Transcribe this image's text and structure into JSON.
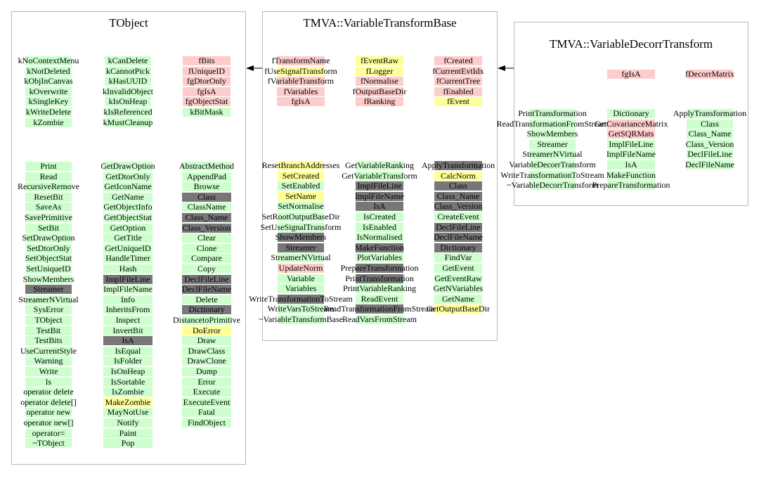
{
  "colors": {
    "public": "#ccffcc",
    "protected": "#ffff99",
    "private": "#ffcccc",
    "inherited": "#777777",
    "border": "#b8b8b8"
  },
  "boxes": [
    {
      "title": "TObject",
      "columns": [
        {
          "section": "members",
          "items": [
            {
              "t": "kNoContextMenu",
              "c": "public"
            },
            {
              "t": "kNotDeleted",
              "c": "public"
            },
            {
              "t": "kObjInCanvas",
              "c": "public"
            },
            {
              "t": "kOverwrite",
              "c": "public"
            },
            {
              "t": "kSingleKey",
              "c": "public"
            },
            {
              "t": "kWriteDelete",
              "c": "public"
            },
            {
              "t": "kZombie",
              "c": "public"
            }
          ]
        },
        {
          "section": "members",
          "items": [
            {
              "t": "kCanDelete",
              "c": "public"
            },
            {
              "t": "kCannotPick",
              "c": "public"
            },
            {
              "t": "kHasUUID",
              "c": "public"
            },
            {
              "t": "kInvalidObject",
              "c": "public"
            },
            {
              "t": "kIsOnHeap",
              "c": "public"
            },
            {
              "t": "kIsReferenced",
              "c": "public"
            },
            {
              "t": "kMustCleanup",
              "c": "public"
            }
          ]
        },
        {
          "section": "members",
          "items": [
            {
              "t": "fBits",
              "c": "private"
            },
            {
              "t": "fUniqueID",
              "c": "private"
            },
            {
              "t": "fgDtorOnly",
              "c": "private"
            },
            {
              "t": "fgIsA",
              "c": "private"
            },
            {
              "t": "fgObjectStat",
              "c": "private"
            },
            {
              "t": "kBitMask",
              "c": "public"
            }
          ]
        },
        {
          "section": "methods",
          "items": [
            {
              "t": "Print",
              "c": "public"
            },
            {
              "t": "Read",
              "c": "public"
            },
            {
              "t": "RecursiveRemove",
              "c": "public"
            },
            {
              "t": "ResetBit",
              "c": "public"
            },
            {
              "t": "SaveAs",
              "c": "public"
            },
            {
              "t": "SavePrimitive",
              "c": "public"
            },
            {
              "t": "SetBit",
              "c": "public"
            },
            {
              "t": "SetDrawOption",
              "c": "public"
            },
            {
              "t": "SetDtorOnly",
              "c": "public"
            },
            {
              "t": "SetObjectStat",
              "c": "public"
            },
            {
              "t": "SetUniqueID",
              "c": "public"
            },
            {
              "t": "ShowMembers",
              "c": "public"
            },
            {
              "t": "Streamer",
              "c": "inherited"
            },
            {
              "t": "StreamerNVirtual",
              "c": "public"
            },
            {
              "t": "SysError",
              "c": "public"
            },
            {
              "t": "TObject",
              "c": "public"
            },
            {
              "t": "TestBit",
              "c": "public"
            },
            {
              "t": "TestBits",
              "c": "public"
            },
            {
              "t": "UseCurrentStyle",
              "c": "public"
            },
            {
              "t": "Warning",
              "c": "public"
            },
            {
              "t": "Write",
              "c": "public"
            },
            {
              "t": "ls",
              "c": "public"
            },
            {
              "t": "operator delete",
              "c": "public"
            },
            {
              "t": "operator delete[]",
              "c": "public"
            },
            {
              "t": "operator new",
              "c": "public"
            },
            {
              "t": "operator new[]",
              "c": "public"
            },
            {
              "t": "operator=",
              "c": "public"
            },
            {
              "t": "~TObject",
              "c": "public"
            }
          ]
        },
        {
          "section": "methods",
          "items": [
            {
              "t": "GetDrawOption",
              "c": "public"
            },
            {
              "t": "GetDtorOnly",
              "c": "public"
            },
            {
              "t": "GetIconName",
              "c": "public"
            },
            {
              "t": "GetName",
              "c": "public"
            },
            {
              "t": "GetObjectInfo",
              "c": "public"
            },
            {
              "t": "GetObjectStat",
              "c": "public"
            },
            {
              "t": "GetOption",
              "c": "public"
            },
            {
              "t": "GetTitle",
              "c": "public"
            },
            {
              "t": "GetUniqueID",
              "c": "public"
            },
            {
              "t": "HandleTimer",
              "c": "public"
            },
            {
              "t": "Hash",
              "c": "public"
            },
            {
              "t": "ImplFileLine",
              "c": "inherited"
            },
            {
              "t": "ImplFileName",
              "c": "public"
            },
            {
              "t": "Info",
              "c": "public"
            },
            {
              "t": "InheritsFrom",
              "c": "public"
            },
            {
              "t": "Inspect",
              "c": "public"
            },
            {
              "t": "InvertBit",
              "c": "public"
            },
            {
              "t": "IsA",
              "c": "inherited"
            },
            {
              "t": "IsEqual",
              "c": "public"
            },
            {
              "t": "IsFolder",
              "c": "public"
            },
            {
              "t": "IsOnHeap",
              "c": "public"
            },
            {
              "t": "IsSortable",
              "c": "public"
            },
            {
              "t": "IsZombie",
              "c": "public"
            },
            {
              "t": "MakeZombie",
              "c": "protected"
            },
            {
              "t": "MayNotUse",
              "c": "public"
            },
            {
              "t": "Notify",
              "c": "public"
            },
            {
              "t": "Paint",
              "c": "public"
            },
            {
              "t": "Pop",
              "c": "public"
            }
          ]
        },
        {
          "section": "methods",
          "items": [
            {
              "t": "AbstractMethod",
              "c": "public"
            },
            {
              "t": "AppendPad",
              "c": "public"
            },
            {
              "t": "Browse",
              "c": "public"
            },
            {
              "t": "Class",
              "c": "inherited"
            },
            {
              "t": "ClassName",
              "c": "public"
            },
            {
              "t": "Class_Name",
              "c": "inherited"
            },
            {
              "t": "Class_Version",
              "c": "inherited"
            },
            {
              "t": "Clear",
              "c": "public"
            },
            {
              "t": "Clone",
              "c": "public"
            },
            {
              "t": "Compare",
              "c": "public"
            },
            {
              "t": "Copy",
              "c": "public"
            },
            {
              "t": "DeclFileLine",
              "c": "inherited"
            },
            {
              "t": "DeclFileName",
              "c": "inherited"
            },
            {
              "t": "Delete",
              "c": "public"
            },
            {
              "t": "Dictionary",
              "c": "inherited"
            },
            {
              "t": "DistancetoPrimitive",
              "c": "public"
            },
            {
              "t": "DoError",
              "c": "protected"
            },
            {
              "t": "Draw",
              "c": "public"
            },
            {
              "t": "DrawClass",
              "c": "public"
            },
            {
              "t": "DrawClone",
              "c": "public"
            },
            {
              "t": "Dump",
              "c": "public"
            },
            {
              "t": "Error",
              "c": "public"
            },
            {
              "t": "Execute",
              "c": "public"
            },
            {
              "t": "ExecuteEvent",
              "c": "public"
            },
            {
              "t": "Fatal",
              "c": "public"
            },
            {
              "t": "FindObject",
              "c": "public"
            }
          ]
        }
      ]
    },
    {
      "title": "TMVA::VariableTransformBase",
      "columns": [
        {
          "section": "members",
          "items": [
            {
              "t": "fTransformName",
              "c": "private"
            },
            {
              "t": "fUseSignalTransform",
              "c": "protected"
            },
            {
              "t": "fVariableTransform",
              "c": "private"
            },
            {
              "t": "fVariables",
              "c": "private"
            },
            {
              "t": "fgIsA",
              "c": "private"
            }
          ]
        },
        {
          "section": "members",
          "items": [
            {
              "t": "fEventRaw",
              "c": "protected"
            },
            {
              "t": "fLogger",
              "c": "protected"
            },
            {
              "t": "fNormalise",
              "c": "private"
            },
            {
              "t": "fOutputBaseDir",
              "c": "private"
            },
            {
              "t": "fRanking",
              "c": "private"
            }
          ]
        },
        {
          "section": "members",
          "items": [
            {
              "t": "fCreated",
              "c": "private"
            },
            {
              "t": "fCurrentEvtIdx",
              "c": "private"
            },
            {
              "t": "fCurrentTree",
              "c": "private"
            },
            {
              "t": "fEnabled",
              "c": "private"
            },
            {
              "t": "fEvent",
              "c": "protected"
            }
          ]
        },
        {
          "section": "methods",
          "items": [
            {
              "t": "ResetBranchAddresses",
              "c": "protected"
            },
            {
              "t": "SetCreated",
              "c": "protected"
            },
            {
              "t": "SetEnabled",
              "c": "public"
            },
            {
              "t": "SetName",
              "c": "protected"
            },
            {
              "t": "SetNormalise",
              "c": "public"
            },
            {
              "t": "SetRootOutputBaseDir",
              "c": "public"
            },
            {
              "t": "SetUseSignalTransform",
              "c": "public"
            },
            {
              "t": "ShowMembers",
              "c": "inherited"
            },
            {
              "t": "Streamer",
              "c": "inherited"
            },
            {
              "t": "StreamerNVirtual",
              "c": "public"
            },
            {
              "t": "UpdateNorm",
              "c": "private"
            },
            {
              "t": "Variable",
              "c": "public"
            },
            {
              "t": "Variables",
              "c": "public"
            },
            {
              "t": "WriteTransformationToStream",
              "c": "inherited"
            },
            {
              "t": "WriteVarsToStream",
              "c": "public"
            },
            {
              "t": "~VariableTransformBase",
              "c": "public"
            }
          ]
        },
        {
          "section": "methods",
          "items": [
            {
              "t": "GetVariableRanking",
              "c": "public"
            },
            {
              "t": "GetVariableTransform",
              "c": "public"
            },
            {
              "t": "ImplFileLine",
              "c": "inherited"
            },
            {
              "t": "ImplFileName",
              "c": "inherited"
            },
            {
              "t": "IsA",
              "c": "inherited"
            },
            {
              "t": "IsCreated",
              "c": "public"
            },
            {
              "t": "IsEnabled",
              "c": "public"
            },
            {
              "t": "IsNormalised",
              "c": "public"
            },
            {
              "t": "MakeFunction",
              "c": "inherited"
            },
            {
              "t": "PlotVariables",
              "c": "public"
            },
            {
              "t": "PrepareTransformation",
              "c": "inherited"
            },
            {
              "t": "PrintTransformation",
              "c": "inherited"
            },
            {
              "t": "PrintVariableRanking",
              "c": "public"
            },
            {
              "t": "ReadEvent",
              "c": "public"
            },
            {
              "t": "ReadTransformationFromStream",
              "c": "inherited"
            },
            {
              "t": "ReadVarsFromStream",
              "c": "public"
            }
          ]
        },
        {
          "section": "methods",
          "items": [
            {
              "t": "ApplyTransformation",
              "c": "inherited"
            },
            {
              "t": "CalcNorm",
              "c": "protected"
            },
            {
              "t": "Class",
              "c": "inherited"
            },
            {
              "t": "Class_Name",
              "c": "inherited"
            },
            {
              "t": "Class_Version",
              "c": "inherited"
            },
            {
              "t": "CreateEvent",
              "c": "public"
            },
            {
              "t": "DeclFileLine",
              "c": "inherited"
            },
            {
              "t": "DeclFileName",
              "c": "inherited"
            },
            {
              "t": "Dictionary",
              "c": "inherited"
            },
            {
              "t": "FindVar",
              "c": "public"
            },
            {
              "t": "GetEvent",
              "c": "public"
            },
            {
              "t": "GetEventRaw",
              "c": "public"
            },
            {
              "t": "GetNVariables",
              "c": "public"
            },
            {
              "t": "GetName",
              "c": "public"
            },
            {
              "t": "GetOutputBaseDir",
              "c": "protected"
            }
          ]
        }
      ]
    },
    {
      "title": "TMVA::VariableDecorrTransform",
      "columns": [
        {
          "section": "members",
          "items": []
        },
        {
          "section": "members",
          "items": [
            {
              "t": "fgIsA",
              "c": "private"
            }
          ]
        },
        {
          "section": "members",
          "items": [
            {
              "t": "fDecorrMatrix",
              "c": "private"
            }
          ]
        },
        {
          "section": "methods",
          "items": [
            {
              "t": "PrintTransformation",
              "c": "public"
            },
            {
              "t": "ReadTransformationFromStream",
              "c": "public"
            },
            {
              "t": "ShowMembers",
              "c": "public"
            },
            {
              "t": "Streamer",
              "c": "public"
            },
            {
              "t": "StreamerNVirtual",
              "c": "public"
            },
            {
              "t": "VariableDecorrTransform",
              "c": "public"
            },
            {
              "t": "WriteTransformationToStream",
              "c": "public"
            },
            {
              "t": "~VariableDecorrTransform",
              "c": "public"
            }
          ]
        },
        {
          "section": "methods",
          "items": [
            {
              "t": "Dictionary",
              "c": "public"
            },
            {
              "t": "GetCovarianceMatrix",
              "c": "private"
            },
            {
              "t": "GetSQRMats",
              "c": "private"
            },
            {
              "t": "ImplFileLine",
              "c": "public"
            },
            {
              "t": "ImplFileName",
              "c": "public"
            },
            {
              "t": "IsA",
              "c": "public"
            },
            {
              "t": "MakeFunction",
              "c": "public"
            },
            {
              "t": "PrepareTransformation",
              "c": "public"
            }
          ]
        },
        {
          "section": "methods",
          "items": [
            {
              "t": "ApplyTransformation",
              "c": "public"
            },
            {
              "t": "Class",
              "c": "public"
            },
            {
              "t": "Class_Name",
              "c": "public"
            },
            {
              "t": "Class_Version",
              "c": "public"
            },
            {
              "t": "DeclFileLine",
              "c": "public"
            },
            {
              "t": "DeclFileName",
              "c": "public"
            }
          ]
        }
      ]
    }
  ],
  "inheritance": [
    {
      "from": "TMVA::VariableTransformBase",
      "to": "TObject"
    },
    {
      "from": "TMVA::VariableDecorrTransform",
      "to": "TMVA::VariableTransformBase"
    }
  ]
}
